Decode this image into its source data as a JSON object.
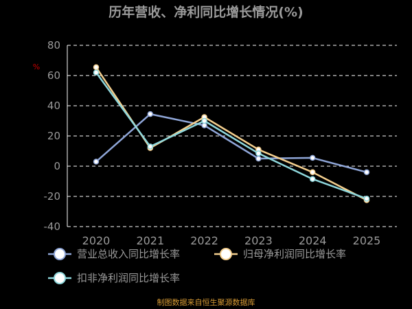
{
  "title": "历年营收、净利同比增长情况(%)",
  "source": "制图数据来自恒生聚源数据库",
  "chart_data": {
    "type": "line",
    "title": "历年营收、净利同比增长情况(%)",
    "ylabel": "%",
    "xlabel": "",
    "ylim": [
      -40,
      80
    ],
    "yticks": [
      -40,
      -20,
      0,
      20,
      40,
      60,
      80
    ],
    "categories": [
      "2020",
      "2021",
      "2022",
      "2023",
      "2024",
      "2025"
    ],
    "grid": true,
    "legend_position": "bottom-left",
    "series": [
      {
        "name": "营业总收入同比增长率",
        "color": "#8fa6d8",
        "values": [
          3,
          34.5,
          27,
          5,
          5.5,
          -4
        ]
      },
      {
        "name": "归母净利润同比增长率",
        "color": "#f4cf8e",
        "values": [
          65.5,
          12,
          32.5,
          11,
          -4,
          -22.5
        ]
      },
      {
        "name": "扣非净利润同比增长率",
        "color": "#8fd8dd",
        "values": [
          62,
          13,
          30,
          8.5,
          -8.5,
          -21.5
        ]
      }
    ]
  }
}
